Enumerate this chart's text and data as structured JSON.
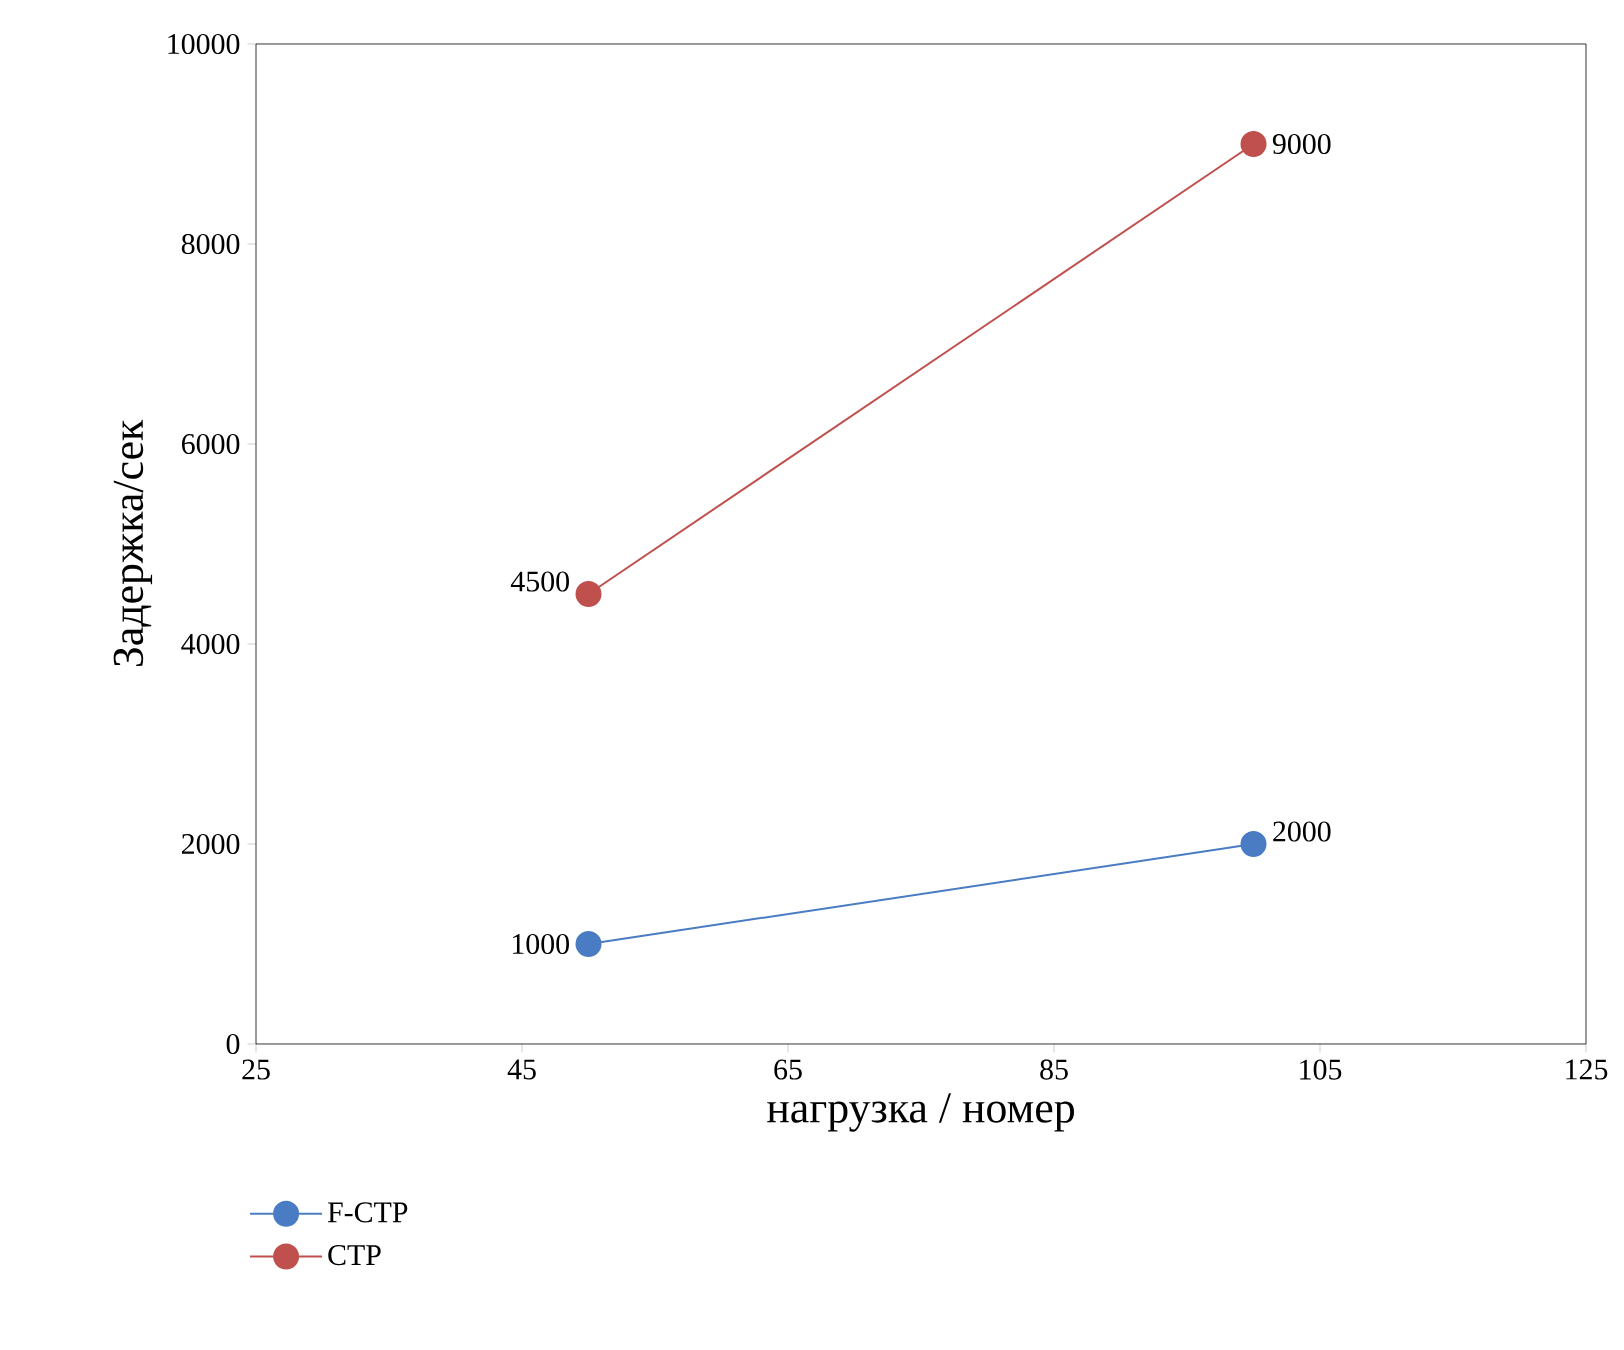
{
  "chart_data": {
    "type": "line",
    "xlabel": "нагрузка / номер",
    "ylabel": "Задержка/сек",
    "xlim": [
      25,
      125
    ],
    "xticks": [
      25,
      45,
      65,
      85,
      105,
      125
    ],
    "ylim": [
      0,
      10000
    ],
    "yticks": [
      0,
      2000,
      4000,
      6000,
      8000,
      10000
    ],
    "x": [
      50,
      100
    ],
    "series": [
      {
        "name": "F-CTP",
        "color": "#4a7cc4",
        "values": [
          1000,
          2000
        ]
      },
      {
        "name": "CTP",
        "color": "#c0504d",
        "values": [
          4500,
          9000
        ]
      }
    ],
    "data_labels": true,
    "marker": "circle",
    "line_style": "solid",
    "grid": false,
    "legend": "bottom left"
  }
}
